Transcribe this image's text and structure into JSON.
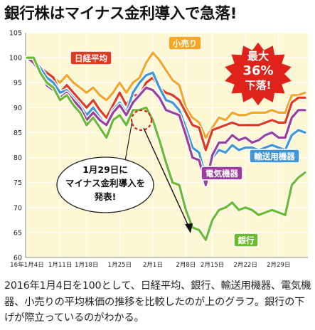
{
  "title": "銀行株はマイナス金利導入で急落!",
  "caption": "2016年1月4日を100として、日経平均、銀行、輸送用機器、電気機器、小売りの平均株価の推移を比較したのが上のグラフ。銀行の下げが際立っているのがわかる。",
  "callout": {
    "line1": "1月29日に",
    "line2": "マイナス金利導入を",
    "line3": "発表!"
  },
  "burst": {
    "line1": "最大",
    "line2": "36%",
    "line3": "下落!"
  },
  "colors": {
    "nikkei": "#e03a1e",
    "retail": "#f5a623",
    "transport": "#3e96d6",
    "electric": "#9a3f9d",
    "bank": "#6cbb2e",
    "burst": "#e0231a",
    "plot_bg": "#fdf7d3",
    "grid": "#ffffff"
  },
  "chart_data": {
    "type": "line",
    "x": [
      "1/4",
      "1/5",
      "1/6",
      "1/7",
      "1/8",
      "1/12",
      "1/13",
      "1/14",
      "1/15",
      "1/18",
      "1/19",
      "1/20",
      "1/21",
      "1/22",
      "1/25",
      "1/26",
      "1/27",
      "1/28",
      "1/29",
      "2/1",
      "2/2",
      "2/3",
      "2/4",
      "2/5",
      "2/8",
      "2/9",
      "2/10",
      "2/12",
      "2/15",
      "2/16",
      "2/17",
      "2/18",
      "2/19",
      "2/22",
      "2/23",
      "2/24",
      "2/25",
      "2/26",
      "2/29",
      "3/1",
      "3/2",
      "3/3",
      "3/4"
    ],
    "x_ticks": [
      {
        "label": "16年1月4日",
        "at": "1/4"
      },
      {
        "label": "1月11日",
        "at": "1/12"
      },
      {
        "label": "1月18日",
        "at": "1/18"
      },
      {
        "label": "1月25日",
        "at": "1/25"
      },
      {
        "label": "2月1日",
        "at": "2/1"
      },
      {
        "label": "2月8日",
        "at": "2/8"
      },
      {
        "label": "2月15日",
        "at": "2/15"
      },
      {
        "label": "2月22日",
        "at": "2/22"
      },
      {
        "label": "2月29日",
        "at": "2/29"
      }
    ],
    "y_ticks": [
      60,
      65,
      70,
      75,
      80,
      85,
      90,
      95,
      100,
      105
    ],
    "ylim": [
      60,
      105
    ],
    "grid": true,
    "series": [
      {
        "name": "小売り",
        "color_key": "retail",
        "values": [
          100,
          99.5,
          98,
          97,
          96,
          95,
          96.5,
          95,
          94,
          93,
          94,
          92.5,
          91.5,
          93,
          95,
          93,
          95,
          96,
          99,
          101,
          99.5,
          97.5,
          95.5,
          94.5,
          90,
          88,
          87,
          84,
          86,
          88,
          87.5,
          89,
          88.5,
          88.5,
          89,
          89,
          89,
          89.5,
          89,
          89,
          92.5,
          92.5,
          93
        ]
      },
      {
        "name": "日経平均",
        "color_key": "nikkei",
        "values": [
          100,
          99,
          98,
          97,
          96,
          93,
          94.5,
          93,
          91.5,
          90,
          91.5,
          89.5,
          88,
          90.5,
          93,
          90.5,
          92.5,
          92.5,
          95,
          96,
          94,
          93,
          92.5,
          91.5,
          89,
          86.5,
          86,
          81.5,
          85.5,
          86,
          86.5,
          87,
          86.5,
          86.5,
          86.5,
          86.5,
          87,
          87.5,
          87,
          87,
          91,
          92,
          92
        ]
      },
      {
        "name": "輸送用機器",
        "color_key": "transport",
        "values": [
          100,
          99.5,
          98,
          96,
          95,
          93,
          93.5,
          92,
          90.5,
          88.5,
          90,
          88,
          86.5,
          89.5,
          91,
          89,
          93,
          95,
          96.5,
          97,
          94,
          91.5,
          91,
          89.5,
          86,
          82,
          81,
          76,
          80,
          81.5,
          81,
          82.5,
          81.5,
          82,
          82,
          81.5,
          82,
          82.5,
          82,
          81.5,
          84.5,
          85.5,
          85
        ]
      },
      {
        "name": "電気機器",
        "color_key": "electric",
        "values": [
          100,
          99,
          97,
          94.5,
          93.5,
          92,
          93,
          91.5,
          90,
          87.5,
          89,
          87.5,
          86.5,
          89,
          90.5,
          88.5,
          91,
          92.5,
          94,
          93.5,
          92,
          89.5,
          89,
          88.5,
          84.5,
          80,
          79.5,
          74.5,
          80.5,
          83,
          83,
          84.5,
          83.5,
          84,
          83,
          83.5,
          84.5,
          85,
          84,
          84,
          88,
          89.5,
          89.5
        ]
      },
      {
        "name": "銀行",
        "color_key": "bank",
        "values": [
          100,
          100,
          97,
          95,
          94,
          91.5,
          92.5,
          90.5,
          89,
          86.5,
          88,
          86,
          84,
          87.5,
          88.5,
          86.5,
          89.5,
          89.5,
          90,
          87.5,
          83.5,
          79,
          75,
          74.5,
          69.5,
          66,
          65.5,
          63.5,
          67.5,
          69.5,
          70,
          71,
          69.5,
          70,
          69.5,
          68.5,
          69,
          69.5,
          69,
          68.5,
          74.5,
          76,
          77
        ]
      }
    ],
    "labels": [
      "日経平均",
      "小売り",
      "電気機器",
      "輸送用機器",
      "銀行"
    ]
  }
}
